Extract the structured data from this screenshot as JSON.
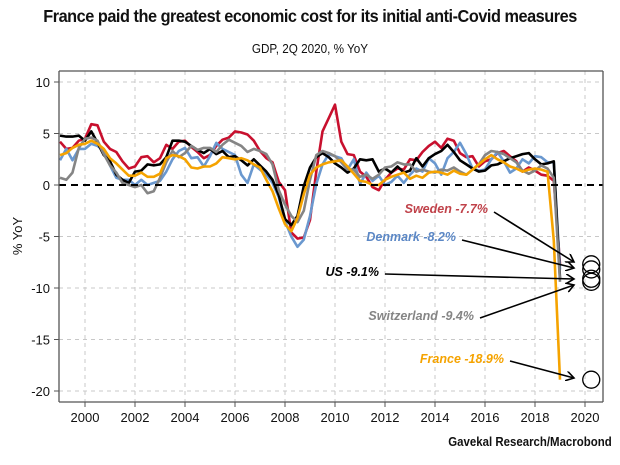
{
  "chart_data": {
    "type": "line",
    "title": "France paid the greatest economic cost for its initial anti-Covid measures",
    "subtitle": "GDP, 2Q 2020, % YoY",
    "xlabel": "",
    "ylabel": "% YoY",
    "source": "Gavekal Research/Macrobond",
    "xlim": [
      1999.0,
      2020.75
    ],
    "ylim": [
      -21,
      11
    ],
    "x_ticks": [
      2000,
      2002,
      2004,
      2006,
      2008,
      2010,
      2012,
      2014,
      2016,
      2018,
      2020
    ],
    "x_tick_labels": [
      "2000",
      "2002",
      "2004",
      "2006",
      "2008",
      "2010",
      "2012",
      "2014",
      "2016",
      "2018",
      "2020"
    ],
    "y_ticks": [
      10,
      5,
      0,
      -5,
      -10,
      -15,
      -20
    ],
    "y_tick_labels": [
      "10",
      "5",
      "0",
      "-5",
      "-10",
      "-15",
      "-20"
    ],
    "grid": true,
    "zero_line": "dashed",
    "x_start": 1999.0,
    "x_step": 0.25,
    "series": [
      {
        "name": "Sweden",
        "color": "#c8102e",
        "values": [
          4.2,
          3.5,
          3.6,
          4.3,
          4.5,
          5.9,
          5.8,
          4.2,
          3.5,
          3.2,
          2.3,
          1.6,
          1.8,
          2.7,
          2.8,
          2.2,
          2.6,
          3.9,
          3.5,
          4.2,
          4.3,
          3.7,
          3.2,
          2.6,
          2.9,
          3.8,
          4.4,
          4.6,
          5.2,
          5.1,
          4.9,
          4.3,
          3.3,
          2.6,
          2.2,
          0.3,
          -0.5,
          -4.6,
          -5.2,
          -5.1,
          -3.4,
          1.3,
          5.2,
          6.5,
          7.8,
          4.2,
          3.0,
          2.9,
          1.3,
          0.8,
          -0.2,
          -0.5,
          0.5,
          1.2,
          1.6,
          1.5,
          2.5,
          2.4,
          3.2,
          3.8,
          4.2,
          3.6,
          4.5,
          4.3,
          3.1,
          2.7,
          2.8,
          1.8,
          2.3,
          2.5,
          3.1,
          3.3,
          2.8,
          2.3,
          1.3,
          1.7,
          1.4,
          1.0,
          0.9,
          0.4,
          -7.7
        ],
        "final_label": "Sweden -7.7%",
        "final_value": -7.7
      },
      {
        "name": "Denmark",
        "color": "#6a98cf",
        "values": [
          2.4,
          3.5,
          2.4,
          3.5,
          3.5,
          4.0,
          3.8,
          3.3,
          1.9,
          0.7,
          0.5,
          0.5,
          0.0,
          0.5,
          0.0,
          0.2,
          0.4,
          1.3,
          2.5,
          3.3,
          3.6,
          2.6,
          2.7,
          1.8,
          2.8,
          4.1,
          3.5,
          3.2,
          2.9,
          1.0,
          0.2,
          2.0,
          1.5,
          1.0,
          0.2,
          -1.2,
          -3.5,
          -5.0,
          -6.0,
          -5.3,
          -3.0,
          0.1,
          2.0,
          3.0,
          2.8,
          2.6,
          1.5,
          2.5,
          0.1,
          1.2,
          0.4,
          0.9,
          0.0,
          0.3,
          0.9,
          0.2,
          1.0,
          1.6,
          1.3,
          2.6,
          2.1,
          1.0,
          2.6,
          3.2,
          4.1,
          3.0,
          1.6,
          1.4,
          1.5,
          2.5,
          3.2,
          2.3,
          1.2,
          1.6,
          2.5,
          2.1,
          2.8,
          2.7,
          2.2,
          2.2,
          -8.2
        ],
        "final_label": "Denmark -8.2%",
        "final_value": -8.2
      },
      {
        "name": "US",
        "color": "#000000",
        "values": [
          4.8,
          4.7,
          4.7,
          4.8,
          4.3,
          5.2,
          4.1,
          2.9,
          2.3,
          1.0,
          0.5,
          0.2,
          1.3,
          1.4,
          2.0,
          1.9,
          2.0,
          2.7,
          4.3,
          4.3,
          4.2,
          3.8,
          3.4,
          3.1,
          3.5,
          3.0,
          3.3,
          2.7,
          2.8,
          2.4,
          1.9,
          2.5,
          1.9,
          1.3,
          0.5,
          -1.0,
          -3.3,
          -3.9,
          -3.0,
          -0.1,
          1.7,
          2.7,
          3.1,
          2.7,
          2.1,
          1.7,
          1.2,
          1.6,
          2.5,
          2.4,
          2.5,
          1.3,
          1.6,
          1.2,
          1.8,
          1.2,
          1.4,
          2.6,
          1.8,
          2.6,
          3.0,
          3.3,
          3.9,
          3.2,
          2.4,
          2.0,
          1.6,
          1.3,
          1.4,
          1.9,
          2.0,
          2.3,
          2.6,
          2.8,
          3.0,
          3.1,
          2.5,
          2.0,
          2.1,
          2.3,
          -9.1
        ],
        "final_label": "US -9.1%",
        "final_value": -9.1
      },
      {
        "name": "Switzerland",
        "color": "#858585",
        "values": [
          0.7,
          0.5,
          1.2,
          3.6,
          4.5,
          4.6,
          4.3,
          3.0,
          1.9,
          1.2,
          0.2,
          0.0,
          -0.2,
          0.0,
          -0.8,
          -0.6,
          0.7,
          2.2,
          3.3,
          2.7,
          3.1,
          3.8,
          3.4,
          3.6,
          3.6,
          3.2,
          3.9,
          4.4,
          4.1,
          3.8,
          3.2,
          3.5,
          3.3,
          3.0,
          2.0,
          -0.5,
          -1.9,
          -3.0,
          -3.6,
          -2.5,
          0.5,
          2.9,
          3.3,
          3.1,
          2.8,
          2.2,
          1.5,
          1.5,
          0.8,
          1.0,
          0.6,
          1.0,
          1.7,
          1.8,
          2.2,
          2.0,
          2.0,
          1.3,
          1.5,
          1.3,
          1.2,
          1.5,
          1.4,
          1.7,
          1.3,
          1.0,
          1.5,
          2.0,
          2.9,
          3.3,
          3.2,
          3.0,
          2.6,
          2.2,
          1.4,
          1.1,
          1.4,
          1.9,
          1.6,
          0.7,
          -9.4
        ],
        "final_label": "Switzerland -9.4%",
        "final_value": -9.4
      },
      {
        "name": "France",
        "color": "#f5a300",
        "values": [
          2.9,
          3.1,
          3.6,
          3.9,
          4.0,
          4.3,
          4.0,
          3.5,
          2.6,
          2.1,
          1.5,
          0.9,
          0.9,
          1.2,
          0.8,
          0.8,
          1.1,
          2.6,
          2.9,
          2.8,
          2.5,
          1.7,
          1.6,
          1.8,
          1.8,
          2.1,
          2.7,
          2.6,
          2.5,
          2.6,
          2.4,
          2.0,
          1.7,
          0.5,
          -0.6,
          -2.3,
          -3.8,
          -4.5,
          -3.2,
          -0.9,
          1.0,
          1.7,
          2.0,
          2.2,
          2.3,
          2.4,
          1.8,
          1.1,
          0.4,
          0.3,
          0.0,
          0.0,
          0.5,
          0.8,
          1.0,
          1.2,
          0.6,
          0.9,
          0.7,
          1.2,
          1.3,
          1.2,
          1.0,
          1.4,
          1.1,
          1.0,
          1.5,
          2.0,
          2.5,
          2.9,
          2.5,
          2.2,
          1.8,
          1.6,
          1.3,
          1.5,
          1.6,
          1.5,
          1.3,
          -5.4,
          -18.9
        ],
        "final_label": "France -18.9%",
        "final_value": -18.9
      }
    ],
    "annotations": [
      {
        "series": "Sweden",
        "text": "Sweden -7.7%",
        "color": "#c0424a"
      },
      {
        "series": "Denmark",
        "text": "Denmark -8.2%",
        "color": "#5b87c5"
      },
      {
        "series": "US",
        "text": "US -9.1%",
        "color": "#000000"
      },
      {
        "series": "Switzerland",
        "text": "Switzerland -9.4%",
        "color": "#858585"
      },
      {
        "series": "France",
        "text": "France -18.9%",
        "color": "#f5a300"
      }
    ]
  }
}
